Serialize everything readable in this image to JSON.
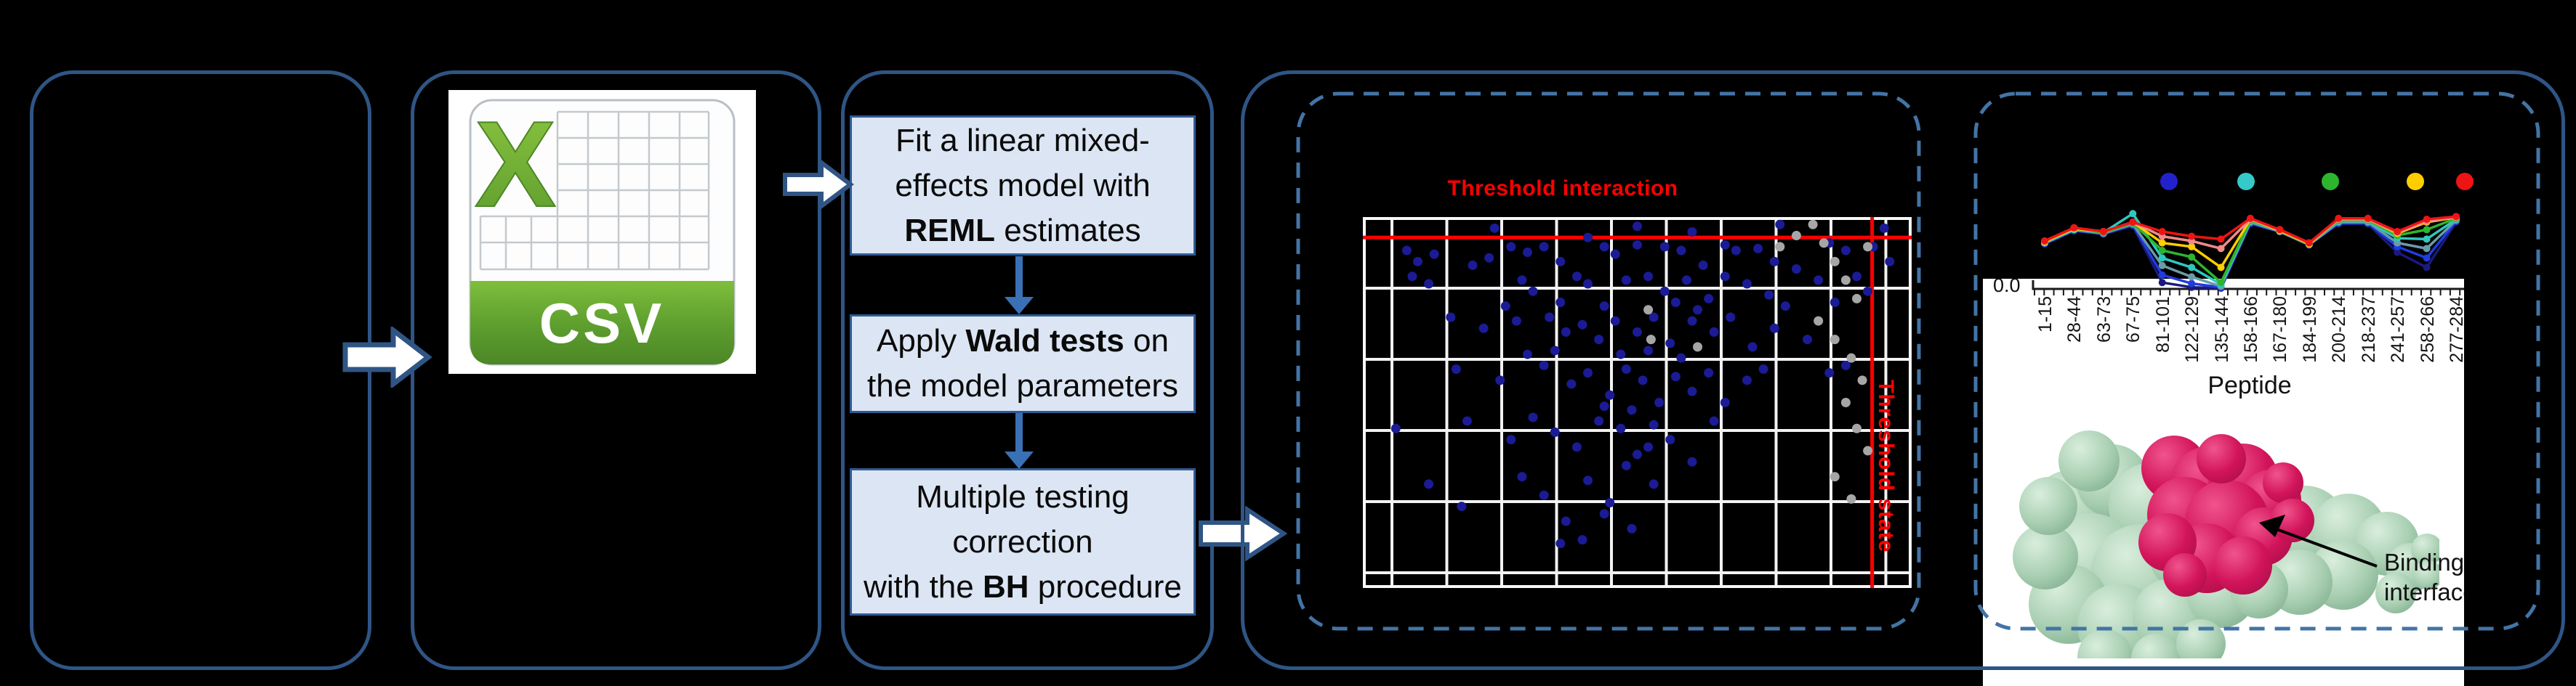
{
  "pipeline": {
    "csv": {
      "label": "CSV",
      "x_letter": "X",
      "green_dark": "#4C8726",
      "green_mid": "#66A637",
      "green_light": "#8CC63F",
      "grid_line": "#C4C9CE",
      "body": "#FDFDFD"
    },
    "flowchart": {
      "steps": [
        {
          "lines": [
            [
              {
                "t": "Fit a linear mixed-"
              }
            ],
            [
              {
                "t": "effects model with"
              }
            ],
            [
              {
                "t": "REML",
                "b": true
              },
              {
                "t": " estimates"
              }
            ]
          ]
        },
        {
          "lines": [
            [
              {
                "t": "Apply "
              },
              {
                "t": "Wald tests",
                "b": true
              },
              {
                "t": " on"
              }
            ],
            [
              {
                "t": "the model parameters"
              }
            ]
          ]
        },
        {
          "lines": [
            [
              {
                "t": "Multiple testing"
              }
            ],
            [
              {
                "t": "correction"
              }
            ],
            [
              {
                "t": "with the "
              },
              {
                "t": "BH",
                "b": true
              },
              {
                "t": " procedure"
              }
            ]
          ]
        }
      ]
    }
  },
  "results": {
    "scatter_title": "Threshold interaction",
    "threshold_state_label": "Threshold state",
    "accent_red": "#FF0000",
    "structure": {
      "y_tick": "0.0",
      "xlabel": "Peptide",
      "annotation_lines": [
        "Binding",
        "interface"
      ],
      "surface_color_mid": "#A9CFB2",
      "surface_color_hi": "#D9EEDD",
      "surface_color_lo": "#7BA98A",
      "peptide_color_mid": "#D2145A",
      "peptide_color_hi": "#F0548D",
      "peptide_color_lo": "#A50E46"
    }
  },
  "chart_data": [
    {
      "type": "scatter",
      "title": "Threshold interaction",
      "xlabel": "",
      "ylabel": "",
      "note": "axis tick labels are rendered black-on-black in source and are not legible; point coordinates are % of plot area (y measured downward from top)",
      "grid": {
        "on": true,
        "color": "#F2F2F2",
        "cols": 11,
        "rows": 6
      },
      "threshold_interaction_y_pct": 5.5,
      "threshold_state_x_pct": 92.8,
      "series": [
        {
          "name": "blue_points",
          "color": "#1B1B96",
          "points": [
            [
              24,
              3
            ],
            [
              50,
              2.5
            ],
            [
              60,
              4
            ],
            [
              76,
              2
            ],
            [
              95,
              3
            ],
            [
              41,
              5.5
            ],
            [
              8,
              9
            ],
            [
              10,
              12
            ],
            [
              13,
              10
            ],
            [
              20,
              13
            ],
            [
              23,
              11
            ],
            [
              27,
              8
            ],
            [
              30,
              9.5
            ],
            [
              33,
              8
            ],
            [
              36,
              12
            ],
            [
              44,
              8
            ],
            [
              46,
              10
            ],
            [
              50,
              7.5
            ],
            [
              55,
              8
            ],
            [
              58,
              9
            ],
            [
              62,
              13
            ],
            [
              66,
              7.5
            ],
            [
              68,
              9
            ],
            [
              72,
              8.5
            ],
            [
              75,
              12
            ],
            [
              79,
              14
            ],
            [
              85,
              7
            ],
            [
              88,
              9
            ],
            [
              93,
              8
            ],
            [
              96,
              12
            ],
            [
              9,
              16
            ],
            [
              12,
              18
            ],
            [
              26,
              24
            ],
            [
              29,
              17
            ],
            [
              31,
              20
            ],
            [
              36,
              23
            ],
            [
              39,
              16
            ],
            [
              41,
              18
            ],
            [
              44,
              24
            ],
            [
              48,
              17
            ],
            [
              52,
              16
            ],
            [
              55,
              20
            ],
            [
              57,
              23
            ],
            [
              59,
              17
            ],
            [
              61,
              25
            ],
            [
              63,
              22
            ],
            [
              66,
              16
            ],
            [
              70,
              18
            ],
            [
              74,
              21
            ],
            [
              77,
              24
            ],
            [
              83,
              17
            ],
            [
              86,
              23
            ],
            [
              90,
              16
            ],
            [
              92,
              20
            ],
            [
              16,
              27
            ],
            [
              22,
              30
            ],
            [
              28,
              28
            ],
            [
              30,
              37
            ],
            [
              34,
              27
            ],
            [
              35,
              36
            ],
            [
              37,
              31
            ],
            [
              40,
              29
            ],
            [
              43,
              33
            ],
            [
              46,
              28
            ],
            [
              47,
              37
            ],
            [
              50,
              31
            ],
            [
              52,
              36
            ],
            [
              53,
              27
            ],
            [
              56,
              34
            ],
            [
              58,
              38
            ],
            [
              60,
              28
            ],
            [
              64,
              31
            ],
            [
              67,
              27
            ],
            [
              71,
              35
            ],
            [
              75,
              30
            ],
            [
              81,
              33
            ],
            [
              17,
              41
            ],
            [
              25,
              44
            ],
            [
              33,
              40
            ],
            [
              38,
              45
            ],
            [
              41,
              42
            ],
            [
              44,
              51
            ],
            [
              45,
              48
            ],
            [
              48,
              41
            ],
            [
              49,
              52
            ],
            [
              51,
              44
            ],
            [
              54,
              50
            ],
            [
              57,
              43
            ],
            [
              60,
              47
            ],
            [
              63,
              42
            ],
            [
              66,
              50
            ],
            [
              70,
              44
            ],
            [
              73,
              41
            ],
            [
              85,
              42
            ],
            [
              88,
              40
            ],
            [
              6,
              57
            ],
            [
              19,
              55
            ],
            [
              27,
              60
            ],
            [
              31,
              54
            ],
            [
              35,
              58
            ],
            [
              39,
              62
            ],
            [
              43,
              55
            ],
            [
              47,
              57
            ],
            [
              48,
              67
            ],
            [
              50,
              64
            ],
            [
              52,
              62
            ],
            [
              53,
              56
            ],
            [
              56,
              60
            ],
            [
              60,
              66
            ],
            [
              64,
              55
            ],
            [
              12,
              72
            ],
            [
              18,
              78
            ],
            [
              29,
              70
            ],
            [
              33,
              75
            ],
            [
              36,
              88
            ],
            [
              37,
              82
            ],
            [
              40,
              87
            ],
            [
              41,
              71
            ],
            [
              44,
              80
            ],
            [
              45,
              77
            ],
            [
              49,
              84
            ],
            [
              53,
              72
            ]
          ]
        },
        {
          "name": "gray_points",
          "color": "#A6A6A6",
          "points": [
            [
              76,
              8
            ],
            [
              79,
              5
            ],
            [
              82,
              2
            ],
            [
              84,
              7
            ],
            [
              86,
              12
            ],
            [
              88,
              17
            ],
            [
              90,
              22
            ],
            [
              92,
              8
            ],
            [
              83,
              28
            ],
            [
              86,
              33
            ],
            [
              89,
              38
            ],
            [
              91,
              44
            ],
            [
              88,
              50
            ],
            [
              90,
              57
            ],
            [
              92,
              63
            ],
            [
              86,
              70
            ],
            [
              89,
              76
            ],
            [
              52,
              25
            ],
            [
              52.5,
              33
            ],
            [
              61,
              35
            ]
          ]
        }
      ]
    },
    {
      "type": "line",
      "title": "",
      "xlabel": "Peptide",
      "ylabel": "",
      "y_tick_labels_visible": [
        "0.0"
      ],
      "ylim": [
        0,
        1
      ],
      "legend": {
        "position": "top",
        "note": "legend text labels not legible (black on black); marker colors only",
        "entries": [
          {
            "label": "",
            "color": "#2222CC"
          },
          {
            "label": "",
            "color": "#35C9C9"
          },
          {
            "label": "",
            "color": "#2DB52D"
          },
          {
            "label": "",
            "color": "#FFCE00"
          },
          {
            "label": "",
            "color": "#EE1414"
          }
        ]
      },
      "categories": [
        "1-15",
        "28-44",
        "63-73",
        "67-75",
        "81-101",
        "122-129",
        "135-144",
        "158-166",
        "167-180",
        "184-199",
        "200-214",
        "218-237",
        "241-257",
        "258-266",
        "277-284"
      ],
      "series": [
        {
          "name": "navy",
          "color": "#1A1A7E",
          "values": [
            0.47,
            0.61,
            0.57,
            0.66,
            0.06,
            0.01,
            0.0,
            0.68,
            0.6,
            0.46,
            0.68,
            0.68,
            0.38,
            0.22,
            0.7
          ]
        },
        {
          "name": "blue",
          "color": "#1F3DDC",
          "values": [
            0.47,
            0.61,
            0.58,
            0.67,
            0.14,
            0.05,
            0.01,
            0.69,
            0.6,
            0.46,
            0.69,
            0.69,
            0.44,
            0.32,
            0.71
          ]
        },
        {
          "name": "steel",
          "color": "#6B9BA8",
          "values": [
            0.48,
            0.62,
            0.58,
            0.68,
            0.24,
            0.12,
            0.02,
            0.7,
            0.6,
            0.46,
            0.7,
            0.7,
            0.48,
            0.42,
            0.72
          ]
        },
        {
          "name": "cyan",
          "color": "#2EC8BE",
          "values": [
            0.48,
            0.62,
            0.59,
            0.79,
            0.32,
            0.22,
            0.04,
            0.71,
            0.61,
            0.47,
            0.71,
            0.71,
            0.53,
            0.52,
            0.73
          ]
        },
        {
          "name": "green",
          "color": "#2DB52D",
          "values": [
            0.49,
            0.63,
            0.59,
            0.69,
            0.4,
            0.33,
            0.06,
            0.72,
            0.61,
            0.47,
            0.72,
            0.72,
            0.56,
            0.62,
            0.74
          ]
        },
        {
          "name": "yellow",
          "color": "#FFCE00",
          "values": [
            0.49,
            0.63,
            0.6,
            0.7,
            0.48,
            0.44,
            0.22,
            0.73,
            0.61,
            0.47,
            0.73,
            0.73,
            0.58,
            0.7,
            0.75
          ]
        },
        {
          "name": "salmon",
          "color": "#F08A8A",
          "values": [
            0.5,
            0.64,
            0.6,
            0.7,
            0.55,
            0.5,
            0.42,
            0.73,
            0.62,
            0.48,
            0.73,
            0.73,
            0.59,
            0.71,
            0.75
          ]
        },
        {
          "name": "red",
          "color": "#EE1414",
          "values": [
            0.5,
            0.64,
            0.6,
            0.7,
            0.6,
            0.55,
            0.52,
            0.74,
            0.62,
            0.48,
            0.74,
            0.74,
            0.6,
            0.73,
            0.76
          ]
        }
      ]
    }
  ]
}
